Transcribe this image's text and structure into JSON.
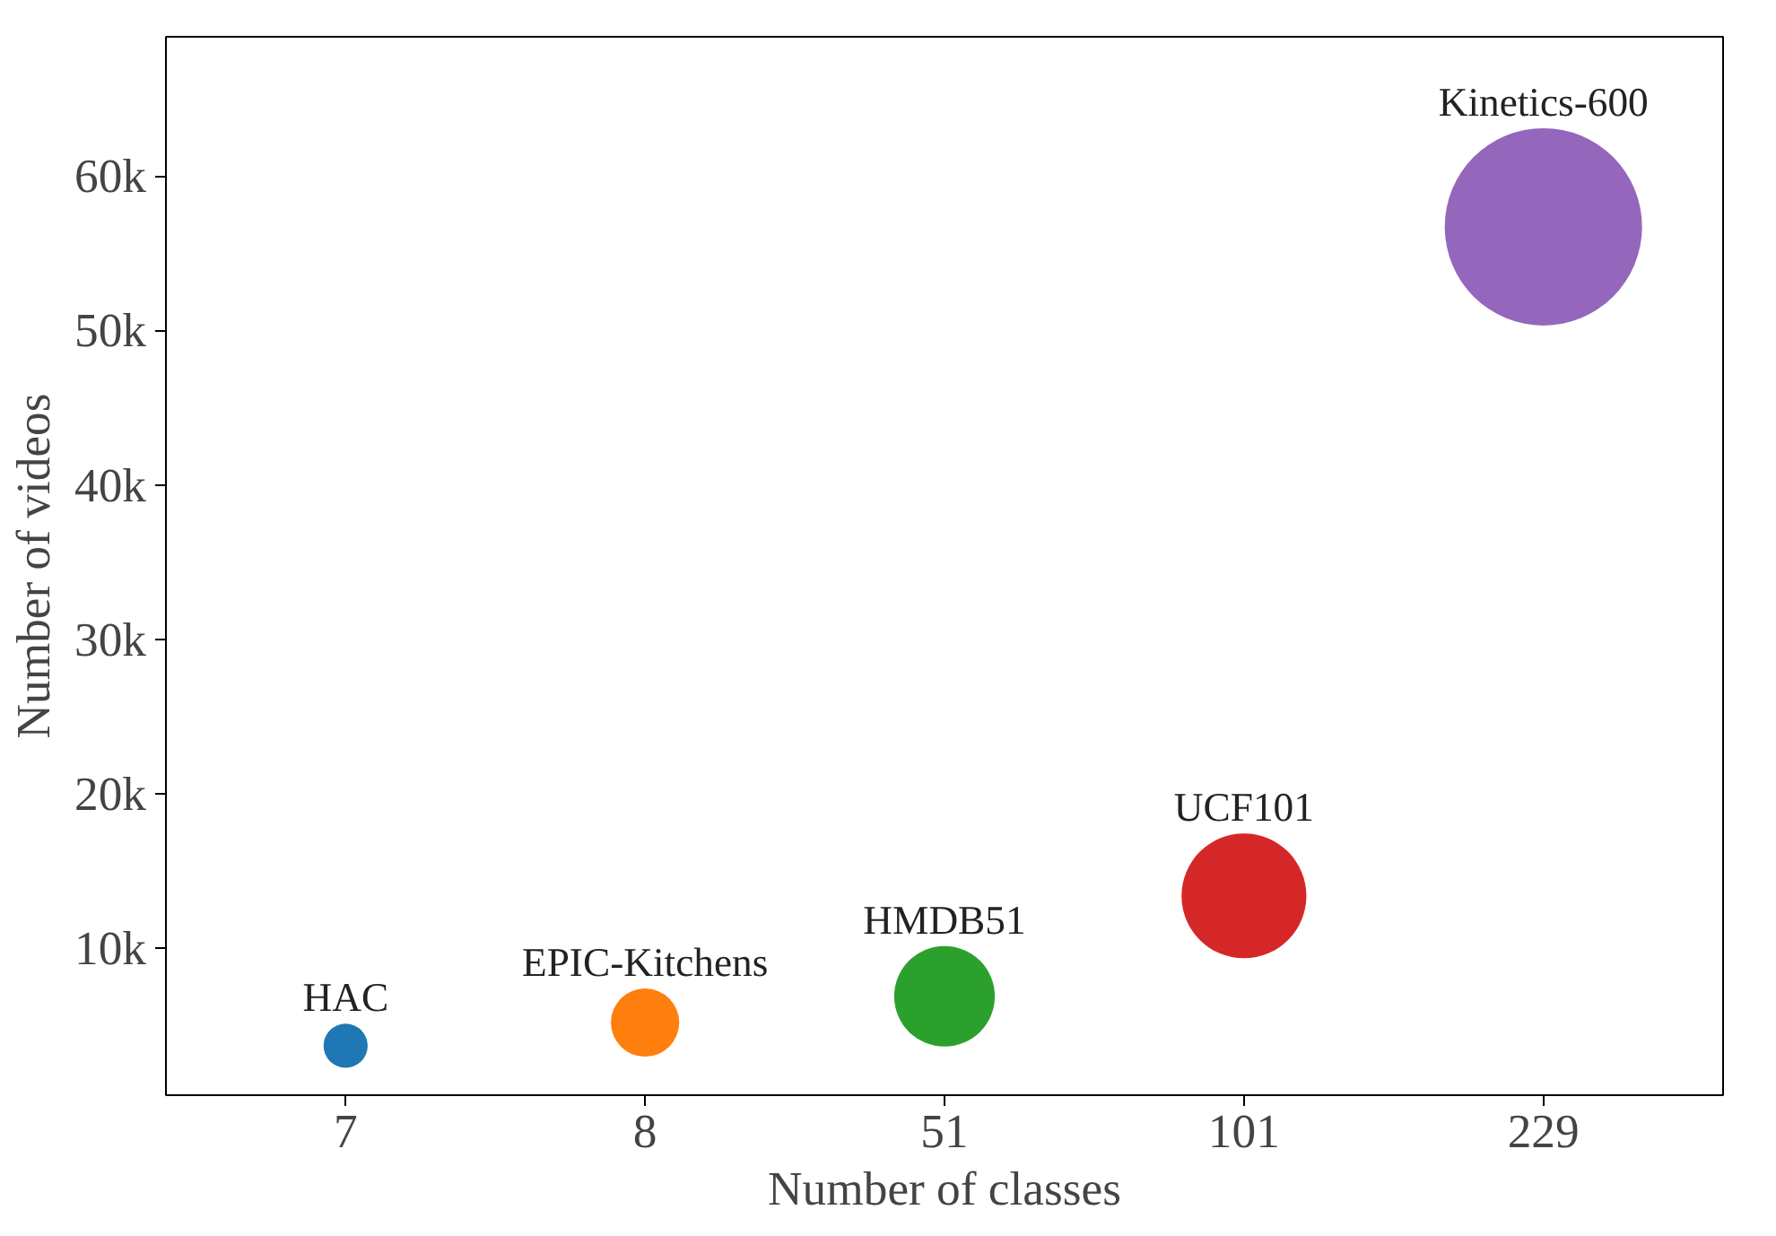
{
  "chart_data": {
    "type": "bubble",
    "xlabel": "Number of classes",
    "ylabel": "Number of videos",
    "categories": [
      "7",
      "8",
      "51",
      "101",
      "229"
    ],
    "values": [
      3700,
      5200,
      6900,
      13400,
      56700
    ],
    "sizes": [
      0.05,
      0.12,
      0.26,
      0.4,
      1
    ],
    "colors": [
      "#1f77b4",
      "#ff7f0e",
      "#2ca02c",
      "#d62728",
      "#9467bd"
    ],
    "ylim": [
      500,
      69000
    ],
    "yticks": [
      {
        "value": 10000,
        "label": "10k"
      },
      {
        "value": 20000,
        "label": "20k"
      },
      {
        "value": 30000,
        "label": "30k"
      },
      {
        "value": 40000,
        "label": "40k"
      },
      {
        "value": 50000,
        "label": "50k"
      },
      {
        "value": 60000,
        "label": "60k"
      }
    ],
    "annotations": [
      {
        "text": "HAC",
        "x": "7",
        "y": 3700
      },
      {
        "text": "EPIC-Kitchens",
        "x": "8",
        "y": 5200
      },
      {
        "text": "HMDB51",
        "x": "51",
        "y": 6900
      },
      {
        "text": "UCF101",
        "x": "101",
        "y": 13400
      },
      {
        "text": "Kinetics-600",
        "x": "229",
        "y": 56700
      }
    ],
    "grid": false
  }
}
